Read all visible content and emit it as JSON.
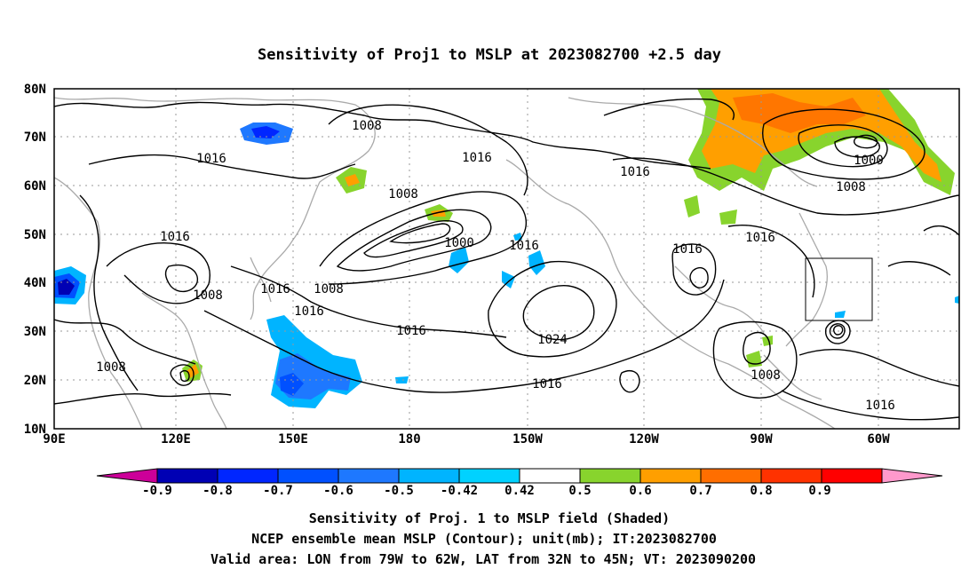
{
  "title": "Sensitivity of Proj1 to MSLP at 2023082700 +2.5 day",
  "map": {
    "lon_labels": [
      "90E",
      "120E",
      "150E",
      "180",
      "150W",
      "120W",
      "90W",
      "60W"
    ],
    "lat_labels": [
      "80N",
      "70N",
      "60N",
      "50N",
      "40N",
      "30N",
      "20N",
      "10N"
    ],
    "contour_labels": [
      "1008",
      "1016",
      "1016",
      "1016",
      "1008",
      "1000",
      "1016",
      "1016",
      "1008",
      "1000",
      "1008",
      "1016",
      "1016",
      "1008",
      "1016",
      "1016",
      "1016",
      "1024",
      "1016",
      "1008",
      "1008",
      "1016",
      "1008"
    ],
    "valid_area_box": {
      "lon_range": [
        "79W",
        "62W"
      ],
      "lat_range": [
        "32N",
        "45N"
      ]
    }
  },
  "colorbar": {
    "labels": [
      "-0.9",
      "-0.8",
      "-0.7",
      "-0.6",
      "-0.5",
      "-0.42",
      "0.42",
      "0.5",
      "0.6",
      "0.7",
      "0.8",
      "0.9"
    ],
    "colors": [
      "#cc0099",
      "#0000b4",
      "#0026ff",
      "#0050ff",
      "#1e78ff",
      "#00b4ff",
      "#00d2ff",
      "#ffffff",
      "#88d42d",
      "#ff9f00",
      "#ff6e00",
      "#ff3200",
      "#ff0000",
      "#ff99cc"
    ]
  },
  "captions": {
    "line1": "Sensitivity of Proj. 1 to MSLP field (Shaded)",
    "line2": "NCEP ensemble mean MSLP (Contour); unit(mb); IT:2023082700",
    "line3": "Valid area: LON from 79W to 62W, LAT from 32N to 45N; VT: 2023090200"
  }
}
